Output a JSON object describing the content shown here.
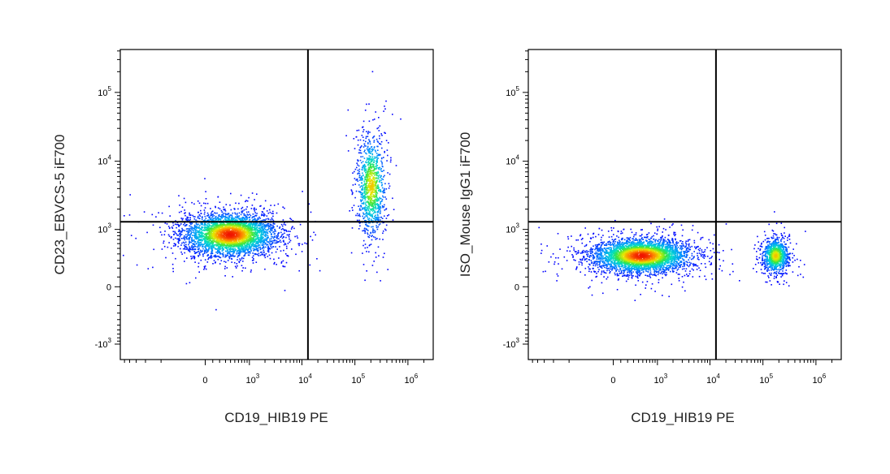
{
  "chart_data": [
    {
      "type": "scatter",
      "subtype": "flow-cytometry-density-dot-plot",
      "xlabel": "CD19_HIB19 PE",
      "ylabel": "CD23_EBVCS-5 iF700",
      "x_scale": "biexponential",
      "y_scale": "biexponential",
      "x_ticks": [
        {
          "value": 0,
          "label": "0",
          "exp": ""
        },
        {
          "value": 1000,
          "label": "10",
          "exp": "3"
        },
        {
          "value": 10000,
          "label": "10",
          "exp": "4"
        },
        {
          "value": 100000,
          "label": "10",
          "exp": "5"
        },
        {
          "value": 1000000,
          "label": "10",
          "exp": "6"
        }
      ],
      "y_ticks": [
        {
          "value": -1000,
          "label": "-10",
          "exp": "3"
        },
        {
          "value": 0,
          "label": "0",
          "exp": ""
        },
        {
          "value": 1000,
          "label": "10",
          "exp": "3"
        },
        {
          "value": 10000,
          "label": "10",
          "exp": "4"
        },
        {
          "value": 100000,
          "label": "10",
          "exp": "5"
        }
      ],
      "quadrant_gate": {
        "x": 13000,
        "y": 1300
      },
      "populations": [
        {
          "x_center": 380,
          "y_center": 850,
          "x_spread_decades": 0.42,
          "y_spread_decades": 0.15,
          "events": 3800
        },
        {
          "x_center": 200000,
          "y_center": 4500,
          "x_spread_decades": 0.13,
          "y_spread_decades": 0.35,
          "events": 1100
        }
      ]
    },
    {
      "type": "scatter",
      "subtype": "flow-cytometry-density-dot-plot",
      "xlabel": "CD19_HIB19 PE",
      "ylabel": "ISO_Mouse IgG1 iF700",
      "x_scale": "biexponential",
      "y_scale": "biexponential",
      "x_ticks": [
        {
          "value": 0,
          "label": "0",
          "exp": ""
        },
        {
          "value": 1000,
          "label": "10",
          "exp": "3"
        },
        {
          "value": 10000,
          "label": "10",
          "exp": "4"
        },
        {
          "value": 100000,
          "label": "10",
          "exp": "5"
        },
        {
          "value": 1000000,
          "label": "10",
          "exp": "6"
        }
      ],
      "y_ticks": [
        {
          "value": -1000,
          "label": "-10",
          "exp": "3"
        },
        {
          "value": 0,
          "label": "0",
          "exp": ""
        },
        {
          "value": 1000,
          "label": "10",
          "exp": "3"
        },
        {
          "value": 10000,
          "label": "10",
          "exp": "4"
        },
        {
          "value": 100000,
          "label": "10",
          "exp": "5"
        }
      ],
      "quadrant_gate": {
        "x": 13000,
        "y": 1300
      },
      "populations": [
        {
          "x_center": 450,
          "y_center": 380,
          "x_spread_decades": 0.45,
          "y_spread_decades": 0.12,
          "events": 3800
        },
        {
          "x_center": 170000,
          "y_center": 380,
          "x_spread_decades": 0.12,
          "y_spread_decades": 0.12,
          "events": 1000
        }
      ]
    }
  ]
}
